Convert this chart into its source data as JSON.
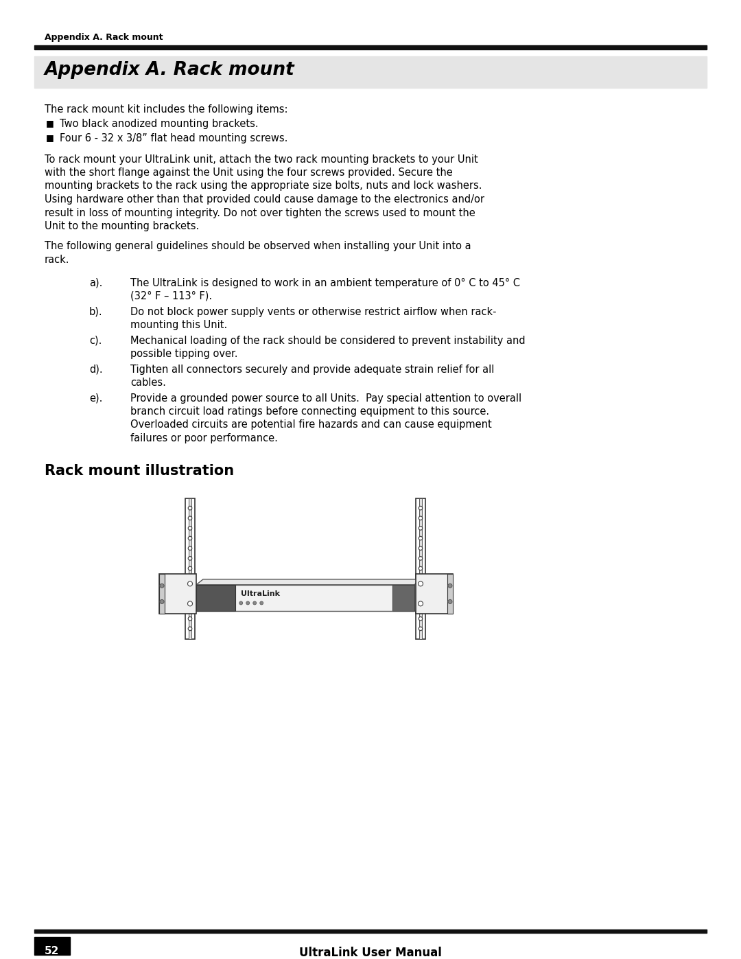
{
  "page_title_small": "Appendix A. Rack mount",
  "page_title_large": "Appendix A. Rack mount",
  "bg_color": "#ffffff",
  "header_bar_color": "#111111",
  "title_bg_color": "#e5e5e5",
  "page_number": "52",
  "footer_text": "UltraLink User Manual",
  "body_font_size": 10.5,
  "para1": "The rack mount kit includes the following items:",
  "bullet1": "Two black anodized mounting brackets.",
  "bullet2": "Four 6 - 32 x 3/8” flat head mounting screws.",
  "para2_lines": [
    "To rack mount your UltraLink unit, attach the two rack mounting brackets to your Unit",
    "with the short flange against the Unit using the four screws provided. Secure the",
    "mounting brackets to the rack using the appropriate size bolts, nuts and lock washers.",
    "Using hardware other than that provided could cause damage to the electronics and/or",
    "result in loss of mounting integrity. Do not over tighten the screws used to mount the",
    "Unit to the mounting brackets."
  ],
  "para3_lines": [
    "The following general guidelines should be observed when installing your Unit into a",
    "rack."
  ],
  "items": [
    [
      "a).",
      [
        "The UltraLink is designed to work in an ambient temperature of 0° C to 45° C",
        "(32° F – 113° F)."
      ]
    ],
    [
      "b).",
      [
        "Do not block power supply vents or otherwise restrict airflow when rack-",
        "mounting this Unit."
      ]
    ],
    [
      "c).",
      [
        "Mechanical loading of the rack should be considered to prevent instability and",
        "possible tipping over."
      ]
    ],
    [
      "d).",
      [
        "Tighten all connectors securely and provide adequate strain relief for all",
        "cables."
      ]
    ],
    [
      "e).",
      [
        "Provide a grounded power source to all Units.  Pay special attention to overall",
        "branch circuit load ratings before connecting equipment to this source.",
        "Overloaded circuits are potential fire hazards and can cause equipment",
        "failures or poor performance."
      ]
    ]
  ],
  "section2_title": "Rack mount illustration"
}
